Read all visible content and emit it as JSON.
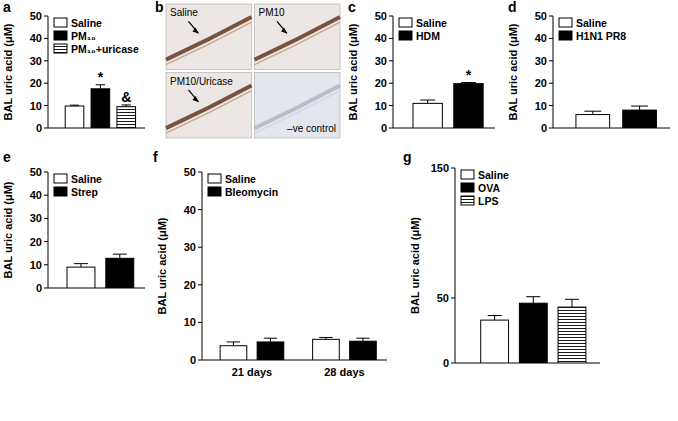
{
  "chart_data": [
    {
      "type": "bar",
      "panel": "a",
      "y_label": "BAL uric acid (μM)",
      "categories": [
        null
      ],
      "ylim": [
        0,
        50
      ],
      "yticks": [
        0,
        10,
        20,
        30,
        40,
        50
      ],
      "legend": "top-left",
      "series": [
        {
          "name": "Saline",
          "color": "#ffffff",
          "values": [
            9.8
          ],
          "errors": [
            0.4
          ]
        },
        {
          "name": "PM₁₀",
          "color": "#000000",
          "values": [
            17.5
          ],
          "errors": [
            1.8
          ]
        },
        {
          "name": "PM₁₀+uricase",
          "color": "#ffffff",
          "line_style": "striped",
          "values": [
            9.5
          ],
          "errors": [
            0.8
          ]
        }
      ],
      "annotations": [
        {
          "text": "*",
          "series": 1,
          "category": 0
        },
        {
          "text": "&",
          "series": 2,
          "category": 0
        }
      ]
    },
    {
      "type": "image",
      "panel": "b",
      "labels": [
        "Saline",
        "PM10",
        "PM10/Uricase",
        "–ve control"
      ]
    },
    {
      "type": "bar",
      "panel": "c",
      "y_label": "BAL uric acid (μM)",
      "categories": [
        null
      ],
      "ylim": [
        0,
        50
      ],
      "yticks": [
        0,
        10,
        20,
        30,
        40,
        50
      ],
      "legend": "top-left",
      "series": [
        {
          "name": "Saline",
          "color": "#ffffff",
          "values": [
            11
          ],
          "errors": [
            1.5
          ]
        },
        {
          "name": "HDM",
          "color": "#000000",
          "values": [
            19.8
          ],
          "errors": [
            0.5
          ]
        }
      ],
      "annotations": [
        {
          "text": "*",
          "series": 1,
          "category": 0
        }
      ]
    },
    {
      "type": "bar",
      "panel": "d",
      "y_label": "BAL uric acid (μM)",
      "categories": [
        null
      ],
      "ylim": [
        0,
        50
      ],
      "yticks": [
        0,
        10,
        20,
        30,
        40,
        50
      ],
      "legend": "top-left",
      "series": [
        {
          "name": "Saline",
          "color": "#ffffff",
          "values": [
            6
          ],
          "errors": [
            1.5
          ]
        },
        {
          "name": "H1N1 PR8",
          "color": "#000000",
          "values": [
            8
          ],
          "errors": [
            1.8
          ]
        }
      ]
    },
    {
      "type": "bar",
      "panel": "e",
      "y_label": "BAL uric acid (μM)",
      "categories": [
        null
      ],
      "ylim": [
        0,
        50
      ],
      "yticks": [
        0,
        10,
        20,
        30,
        40,
        50
      ],
      "legend": "top-left",
      "series": [
        {
          "name": "Saline",
          "color": "#ffffff",
          "values": [
            9
          ],
          "errors": [
            1.5
          ]
        },
        {
          "name": "Strep",
          "color": "#000000",
          "values": [
            12.8
          ],
          "errors": [
            1.8
          ]
        }
      ]
    },
    {
      "type": "bar",
      "panel": "f",
      "y_label": "BAL uric acid (μM)",
      "categories": [
        "21 days",
        "28 days"
      ],
      "ylim": [
        0,
        50
      ],
      "yticks": [
        0,
        10,
        20,
        30,
        40,
        50
      ],
      "legend": "top-left",
      "series": [
        {
          "name": "Saline",
          "color": "#ffffff",
          "values": [
            3.8,
            5.5
          ],
          "errors": [
            1,
            0.5
          ]
        },
        {
          "name": "Bleomycin",
          "color": "#000000",
          "values": [
            4.8,
            5
          ],
          "errors": [
            1,
            0.8
          ]
        }
      ]
    },
    {
      "type": "bar",
      "panel": "g",
      "y_label": "BAL uric acid (μM)",
      "categories": [
        null
      ],
      "ylim": [
        0,
        150
      ],
      "yticks": [
        0,
        50,
        150
      ],
      "legend": "top-left",
      "series": [
        {
          "name": "Saline",
          "color": "#ffffff",
          "values": [
            33
          ],
          "errors": [
            3.5
          ]
        },
        {
          "name": "OVA",
          "color": "#000000",
          "values": [
            46
          ],
          "errors": [
            5
          ]
        },
        {
          "name": "LPS",
          "color": "#ffffff",
          "line_style": "striped",
          "values": [
            43
          ],
          "errors": [
            6
          ]
        }
      ]
    }
  ]
}
